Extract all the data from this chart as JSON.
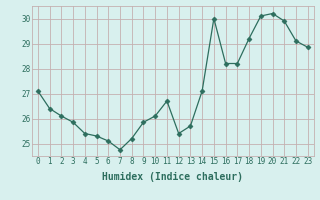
{
  "x": [
    0,
    1,
    2,
    3,
    4,
    5,
    6,
    7,
    8,
    9,
    10,
    11,
    12,
    13,
    14,
    15,
    16,
    17,
    18,
    19,
    20,
    21,
    22,
    23
  ],
  "y": [
    27.1,
    26.4,
    26.1,
    25.85,
    25.4,
    25.3,
    25.1,
    24.75,
    25.2,
    25.85,
    26.1,
    26.7,
    25.4,
    25.7,
    27.1,
    30.0,
    28.2,
    28.2,
    29.2,
    30.1,
    30.2,
    29.9,
    29.1,
    28.85
  ],
  "line_color": "#2d6e5e",
  "marker": "D",
  "marker_size": 2.5,
  "bg_color": "#d8f0ee",
  "grid_color": "#c4b0b0",
  "xlabel": "Humidex (Indice chaleur)",
  "ylim": [
    24.5,
    30.5
  ],
  "xlim": [
    -0.5,
    23.5
  ],
  "yticks": [
    25,
    26,
    27,
    28,
    29,
    30
  ],
  "xticks": [
    0,
    1,
    2,
    3,
    4,
    5,
    6,
    7,
    8,
    9,
    10,
    11,
    12,
    13,
    14,
    15,
    16,
    17,
    18,
    19,
    20,
    21,
    22,
    23
  ],
  "tick_fontsize": 5.5,
  "xlabel_fontsize": 7.0,
  "linewidth": 0.9
}
